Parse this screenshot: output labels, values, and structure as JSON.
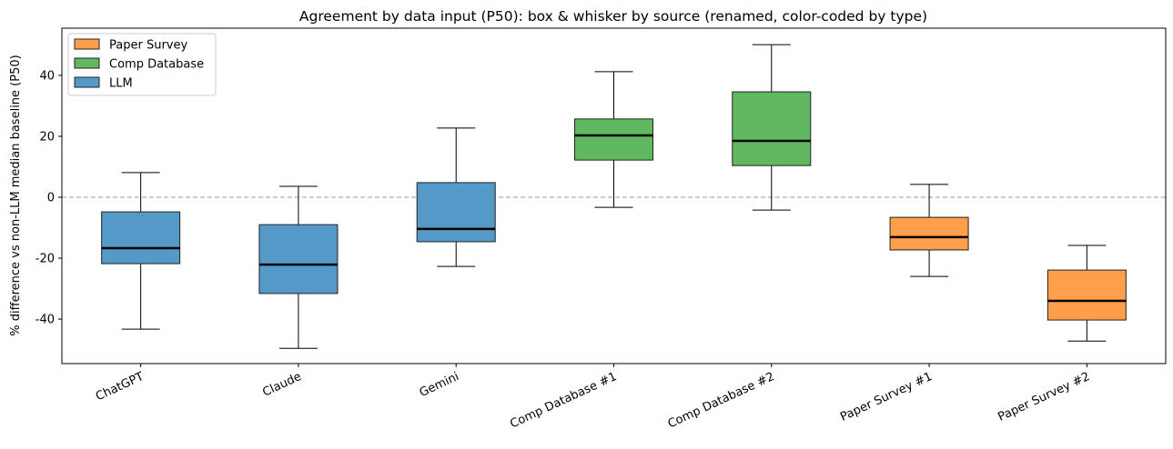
{
  "chart_data": {
    "type": "box",
    "title": "Agreement by data input (P50): box & whisker by source (renamed, color-coded by type)",
    "xlabel": "",
    "ylabel": "% difference vs non-LLM median baseline (P50)",
    "ylim": [
      -54.6,
      55.5
    ],
    "yticks": [
      -40,
      -20,
      0,
      20,
      40
    ],
    "grid": false,
    "reference_line": {
      "y": 0,
      "style": "dashed",
      "color": "#999999"
    },
    "legend_placement": "top-left",
    "legend": [
      {
        "label": "Paper Survey",
        "color": "#ff9f4a"
      },
      {
        "label": "Comp Database",
        "color": "#60b860"
      },
      {
        "label": "LLM",
        "color": "#5599c8"
      }
    ],
    "categories": [
      "ChatGPT",
      "Claude",
      "Gemini",
      "Comp Database #1",
      "Comp Database #2",
      "Paper Survey #1",
      "Paper Survey #2"
    ],
    "boxes": [
      {
        "category": "ChatGPT",
        "type": "LLM",
        "whisker_low": -43.3,
        "q1": -21.8,
        "median": -16.7,
        "q3": -4.8,
        "whisker_high": 8.1
      },
      {
        "category": "Claude",
        "type": "LLM",
        "whisker_low": -49.6,
        "q1": -31.6,
        "median": -22.1,
        "q3": -9.0,
        "whisker_high": 3.6
      },
      {
        "category": "Gemini",
        "type": "LLM",
        "whisker_low": -22.7,
        "q1": -14.6,
        "median": -10.4,
        "q3": 4.8,
        "whisker_high": 22.7
      },
      {
        "category": "Comp Database #1",
        "type": "Comp Database",
        "whisker_low": -3.3,
        "q1": 12.2,
        "median": 20.3,
        "q3": 25.7,
        "whisker_high": 41.2
      },
      {
        "category": "Comp Database #2",
        "type": "Comp Database",
        "whisker_low": -4.2,
        "q1": 10.4,
        "median": 18.5,
        "q3": 34.6,
        "whisker_high": 50.1
      },
      {
        "category": "Paper Survey #1",
        "type": "Paper Survey",
        "whisker_low": -26.0,
        "q1": -17.3,
        "median": -13.1,
        "q3": -6.6,
        "whisker_high": 4.2
      },
      {
        "category": "Paper Survey #2",
        "type": "Paper Survey",
        "whisker_low": -47.2,
        "q1": -40.3,
        "median": -34.0,
        "q3": -23.9,
        "whisker_high": -15.8
      }
    ]
  }
}
